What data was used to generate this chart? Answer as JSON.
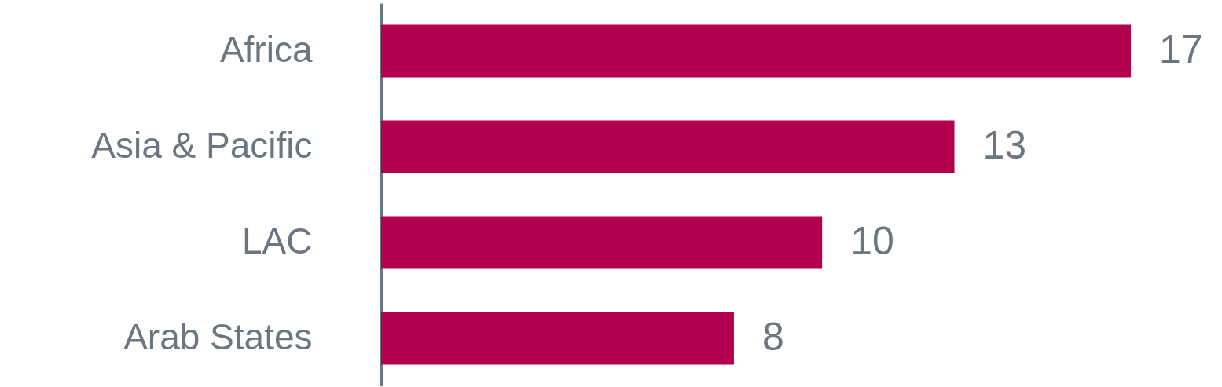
{
  "chart_data": {
    "type": "bar",
    "orientation": "horizontal",
    "categories": [
      "Africa",
      "Asia & Pacific",
      "LAC",
      "Arab States"
    ],
    "values": [
      17,
      13,
      10,
      8
    ],
    "color": "#b3004e",
    "data_labels": true
  }
}
